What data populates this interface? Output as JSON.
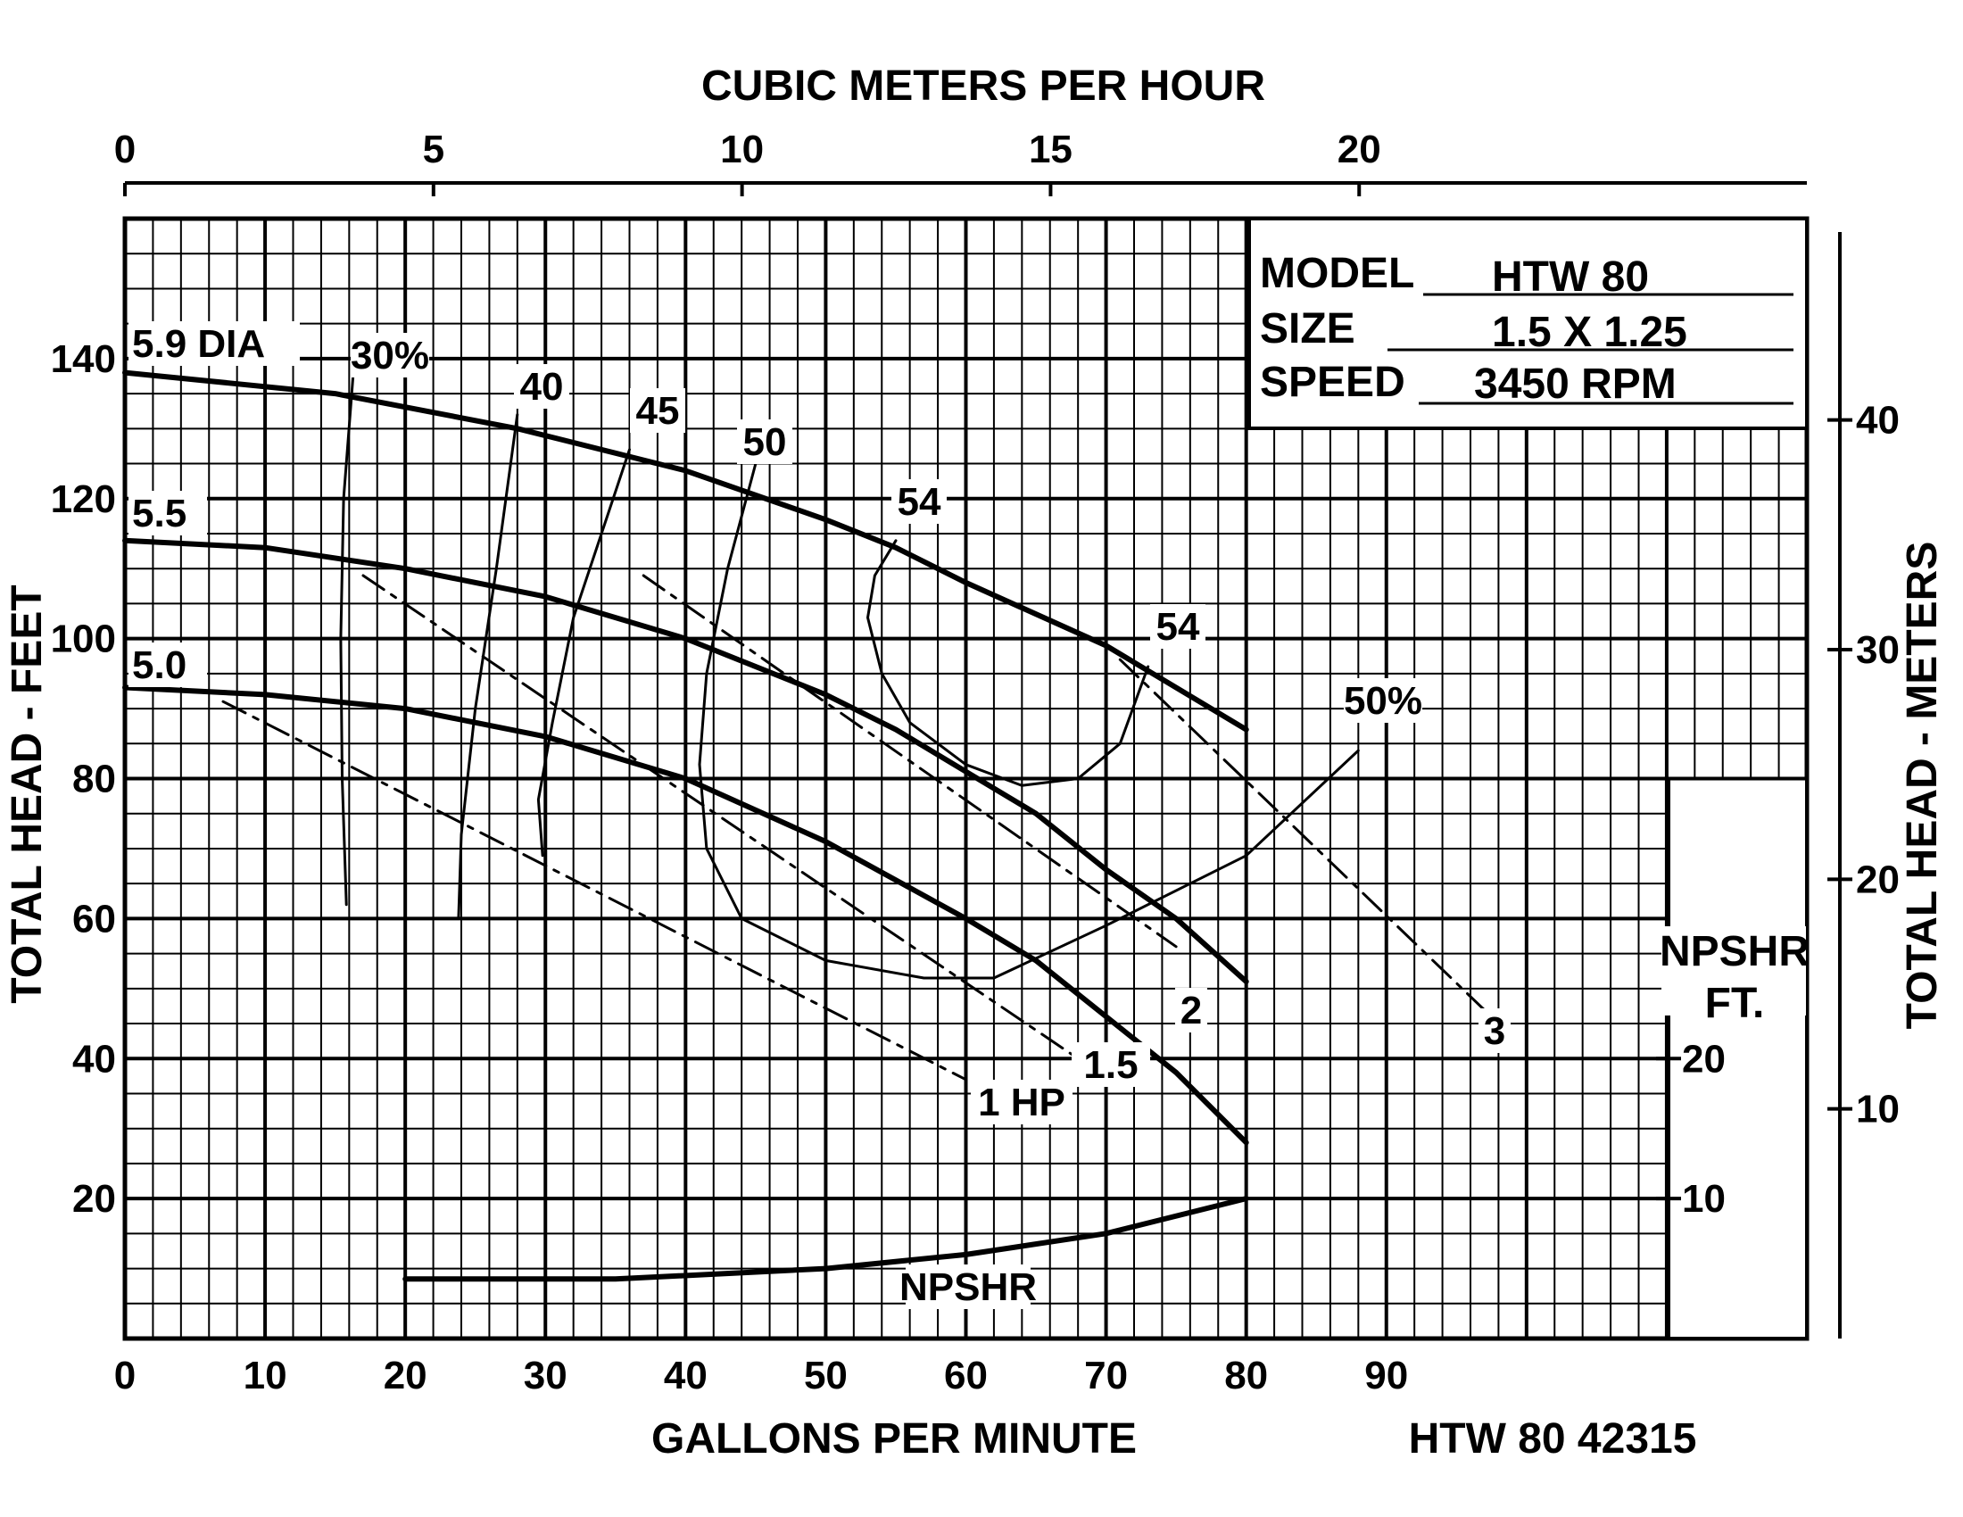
{
  "chart_data": {
    "type": "line",
    "title": "",
    "info_box": {
      "model_label": "MODEL",
      "model_value": "HTW 80",
      "size_label": "SIZE",
      "size_value": "1.5 X 1.25",
      "speed_label": "SPEED",
      "speed_value": "3450 RPM"
    },
    "xlabel": "GALLONS PER MINUTE",
    "x2label": "CUBIC METERS PER HOUR",
    "ylabel": "TOTAL HEAD - FEET",
    "y2label": "TOTAL HEAD - METERS",
    "npshr_axis_label": [
      "NPSHR",
      "FT."
    ],
    "footer_code": "HTW 80 42315",
    "xlim": [
      0,
      120
    ],
    "ylim": [
      0,
      160
    ],
    "x_ticks": [
      "0",
      "10",
      "20",
      "30",
      "40",
      "50",
      "60",
      "70",
      "80",
      "90"
    ],
    "x_tick_values": [
      0,
      10,
      20,
      30,
      40,
      50,
      60,
      70,
      80,
      90
    ],
    "y_ticks": [
      "20",
      "40",
      "60",
      "80",
      "100",
      "120",
      "140"
    ],
    "y_tick_values": [
      20,
      40,
      60,
      80,
      100,
      120,
      140
    ],
    "x2_ticks": [
      "0",
      "5",
      "10",
      "15",
      "20"
    ],
    "x2_tick_values": [
      0,
      5,
      10,
      15,
      20
    ],
    "y2_ticks": [
      "10",
      "20",
      "30",
      "40"
    ],
    "y2_tick_values": [
      10,
      20,
      30,
      40
    ],
    "npshr_ticks": [
      "10",
      "20"
    ],
    "npshr_tick_values": [
      10,
      20
    ],
    "grid": true,
    "series": [
      {
        "name": "5.9 DIA",
        "label": "5.9 DIA",
        "style": "head",
        "x": [
          0,
          15,
          28,
          40,
          50,
          55,
          60,
          70,
          80
        ],
        "y": [
          138,
          135,
          130,
          124,
          117,
          113,
          108,
          99,
          87
        ]
      },
      {
        "name": "5.5",
        "label": "5.5",
        "style": "head",
        "x": [
          0,
          10,
          20,
          30,
          40,
          50,
          55,
          60,
          65,
          70,
          75,
          80
        ],
        "y": [
          114,
          113,
          110,
          106,
          100,
          92,
          87,
          81,
          75,
          67,
          60,
          51
        ]
      },
      {
        "name": "5.0",
        "label": "5.0",
        "style": "head",
        "x": [
          0,
          10,
          20,
          30,
          40,
          50,
          60,
          65,
          70,
          75,
          80
        ],
        "y": [
          93,
          92,
          90,
          86,
          80,
          71,
          60,
          54,
          46,
          38,
          28
        ]
      },
      {
        "name": "NPSHR",
        "label": "NPSHR",
        "style": "head",
        "x": [
          20,
          35,
          50,
          60,
          70,
          80
        ],
        "y": [
          8.5,
          8.5,
          10,
          12,
          15,
          20
        ]
      },
      {
        "name": "1 HP",
        "label": "1 HP",
        "style": "dashed",
        "x": [
          7,
          60
        ],
        "y": [
          91,
          37
        ]
      },
      {
        "name": "1.5",
        "label": "1.5",
        "style": "dashed",
        "x": [
          17,
          68
        ],
        "y": [
          109,
          40
        ]
      },
      {
        "name": "2",
        "label": "2",
        "style": "dashed",
        "x": [
          37,
          75
        ],
        "y": [
          109,
          56
        ]
      },
      {
        "name": "3",
        "label": "3",
        "style": "dashed",
        "x": [
          71,
          98
        ],
        "y": [
          97,
          45
        ]
      },
      {
        "name": "30%",
        "label": "30%",
        "style": "thin",
        "x": [
          16.3,
          15.6,
          15.4,
          15.5,
          15.8
        ],
        "y": [
          138,
          120,
          100,
          80,
          62
        ]
      },
      {
        "name": "40",
        "label": "40",
        "style": "thin",
        "x": [
          28,
          26.5,
          25,
          24,
          23.8
        ],
        "y": [
          132,
          110,
          90,
          72,
          60
        ]
      },
      {
        "name": "45",
        "label": "45",
        "style": "thin",
        "x": [
          36,
          34,
          32,
          30.5,
          29.5,
          29.8
        ],
        "y": [
          127,
          115,
          103,
          88,
          77,
          69
        ]
      },
      {
        "name": "50",
        "label": "50",
        "style": "thin",
        "x": [
          45,
          43,
          41.5,
          41,
          41.5,
          44,
          50,
          57,
          62,
          70,
          80,
          88
        ],
        "y": [
          125,
          110,
          95,
          82,
          70,
          60,
          54,
          51.5,
          51.5,
          59,
          69,
          84
        ]
      },
      {
        "name": "54",
        "label": "54",
        "style": "thin",
        "x": [
          55,
          53.5,
          53,
          54,
          56,
          60,
          64,
          68,
          71,
          73
        ],
        "y": [
          114,
          109,
          103,
          95,
          88,
          82,
          79,
          80,
          85,
          96
        ]
      }
    ],
    "annotations": [
      {
        "text": "54",
        "x": 73,
        "y": 97
      }
    ]
  }
}
